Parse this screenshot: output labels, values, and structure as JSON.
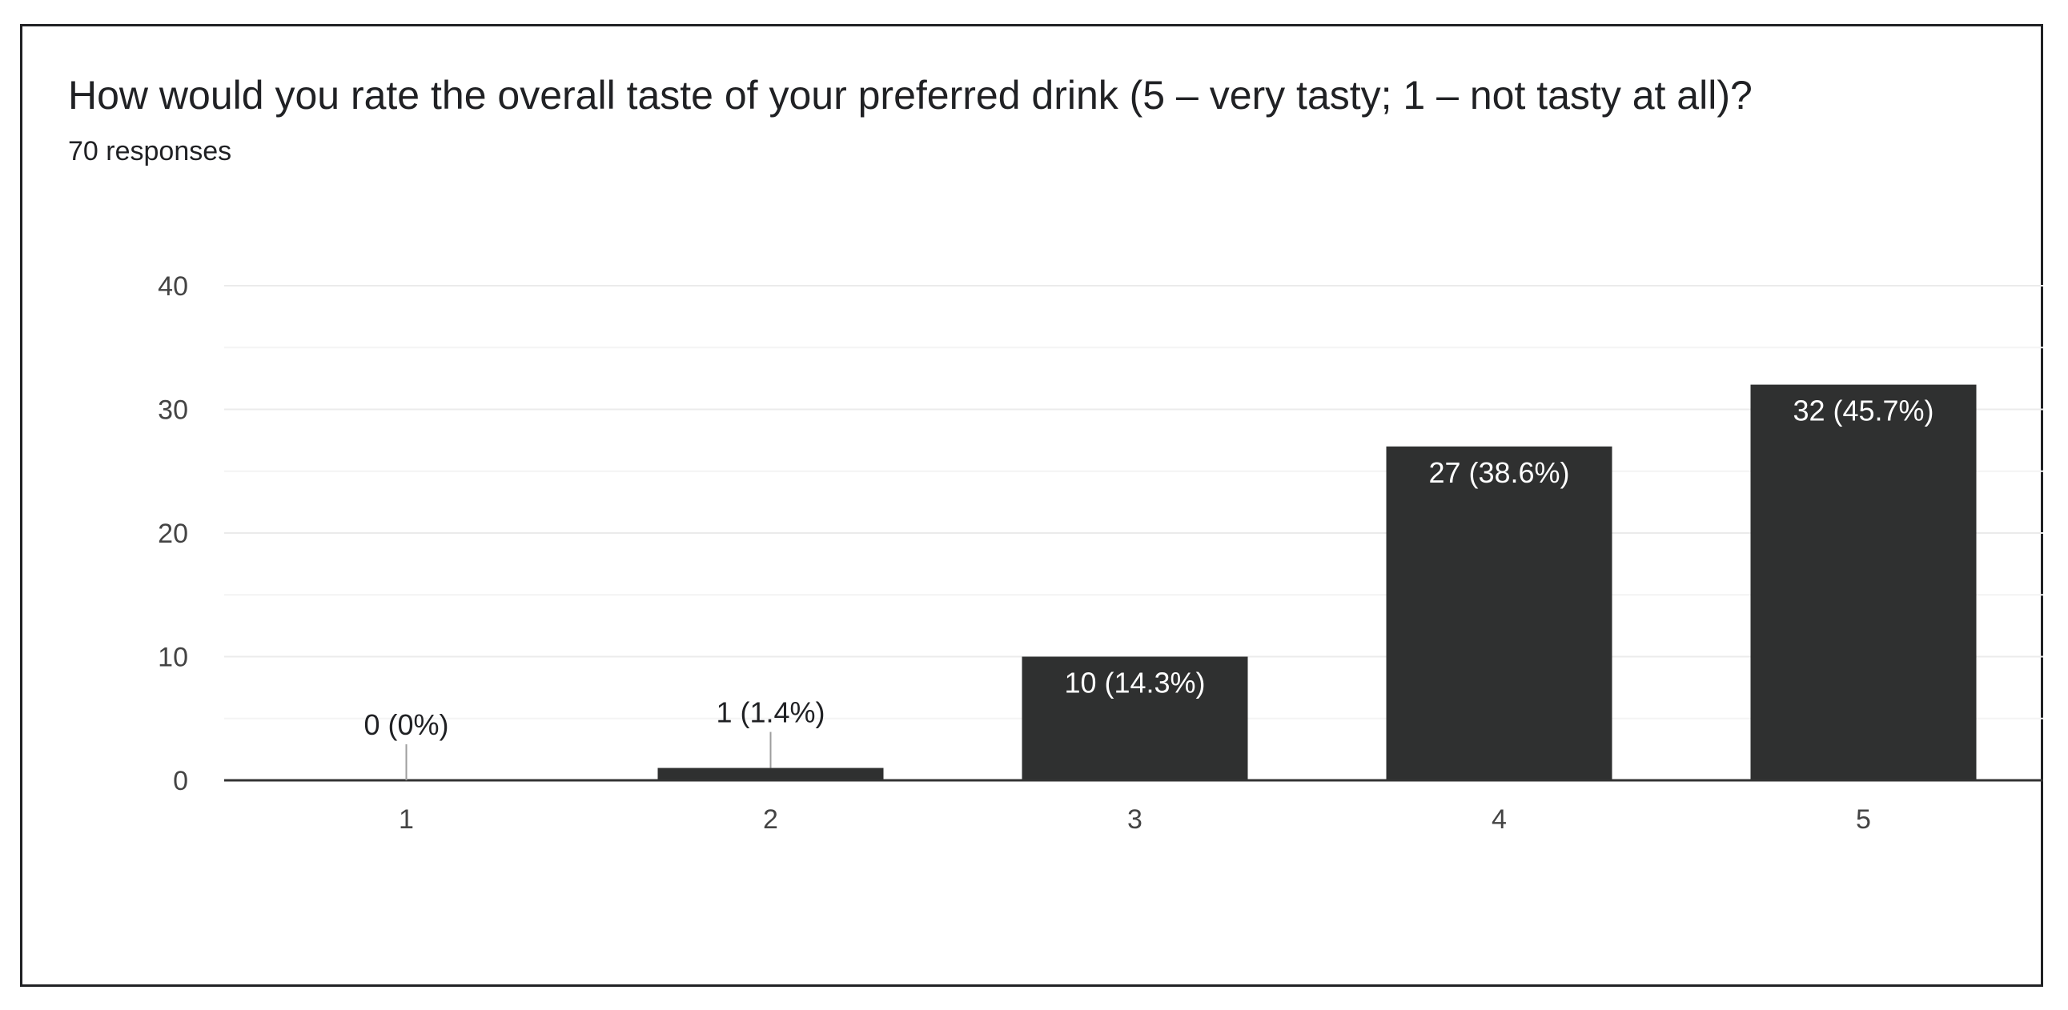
{
  "question": {
    "title": "How would you rate the overall taste of your preferred drink (5 – very tasty; 1 – not tasty at all)?",
    "responses": "70 responses"
  },
  "colors": {
    "bar": "#2f3030",
    "grid": "#ebebeb",
    "axis": "#333333",
    "text": "#202124",
    "tick_text": "#444444",
    "inner_label": "#ffffff"
  },
  "chart_data": {
    "type": "bar",
    "title": "How would you rate the overall taste of your preferred drink (5 – very tasty; 1 – not tasty at all)?",
    "categories": [
      "1",
      "2",
      "3",
      "4",
      "5"
    ],
    "values": [
      0,
      1,
      10,
      27,
      32
    ],
    "labels": [
      "0 (0%)",
      "1 (1.4%)",
      "10 (14.3%)",
      "27 (38.6%)",
      "32 (45.7%)"
    ],
    "ylim": [
      0,
      40
    ],
    "yticks": [
      0,
      10,
      20,
      30,
      40
    ],
    "xlabel": "",
    "ylabel": "",
    "grid": true,
    "legend": "none"
  }
}
